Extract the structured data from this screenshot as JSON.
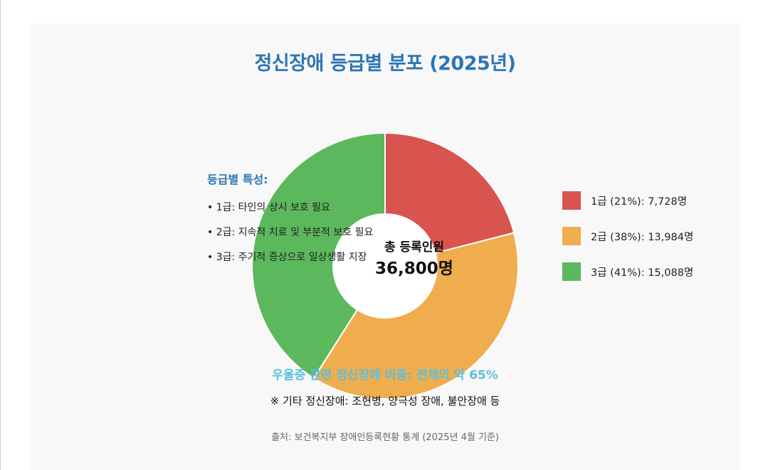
{
  "chart_data": {
    "type": "donut",
    "title": "정신장애 등급별 분포 (2025년)",
    "series": [
      {
        "name": "1급 (21%): 7,728명",
        "value": 7728,
        "color": "#d9534f"
      },
      {
        "name": "2급 (38%): 13,984명",
        "value": 13984,
        "color": "#f0ad4e"
      },
      {
        "name": "3급 (41%): 15,088명",
        "value": 15088,
        "color": "#5cb85c"
      }
    ],
    "center_label": "총 등록인원",
    "center_value": "36,800명",
    "legend_position": "right"
  },
  "notes": {
    "title": "등급별 특성:",
    "items": [
      "• 1급: 타인의 상시 보호 필요",
      "• 2급: 지속적 치료 및 부분적 보호 필요",
      "• 3급: 주기적 증상으로 일상생활 지장"
    ]
  },
  "highlight": "우울증 관련 정신장애 비중: 전체의 약 65%",
  "other_note": "※ 기타 정신장애: 조현병, 양극성 장애, 불안장애 등",
  "source": "출처: 보건복지부 장애인등록현황 통계 (2025년 4월 기준)"
}
